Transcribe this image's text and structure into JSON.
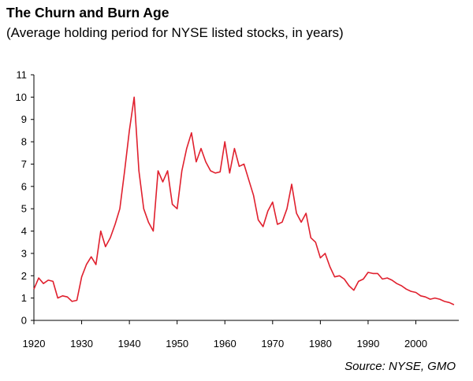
{
  "header": {
    "title": "The Churn and Burn Age",
    "subtitle": "(Average holding period for NYSE listed stocks, in years)"
  },
  "footer": {
    "source": "Source: NYSE, GMO"
  },
  "chart_data": {
    "type": "line",
    "title": "The Churn and Burn Age",
    "subtitle": "(Average holding period for NYSE listed stocks, in years)",
    "xlabel": "",
    "ylabel": "",
    "xlim": [
      1920,
      2009
    ],
    "ylim": [
      0,
      11
    ],
    "x_ticks": [
      1920,
      1930,
      1940,
      1950,
      1960,
      1970,
      1980,
      1990,
      2000
    ],
    "y_ticks": [
      0,
      1,
      2,
      3,
      4,
      5,
      6,
      7,
      8,
      9,
      10,
      11
    ],
    "grid": false,
    "legend": "none",
    "line_color": "#e0202e",
    "series": [
      {
        "x": [
          1920,
          1921,
          1922,
          1923,
          1924,
          1925,
          1926,
          1927,
          1928,
          1929,
          1930,
          1931,
          1932,
          1933,
          1934,
          1935,
          1936,
          1937,
          1938,
          1939,
          1940,
          1941,
          1942,
          1943,
          1944,
          1945,
          1946,
          1947,
          1948,
          1949,
          1950,
          1951,
          1952,
          1953,
          1954,
          1955,
          1956,
          1957,
          1958,
          1959,
          1960,
          1961,
          1962,
          1963,
          1964,
          1965,
          1966,
          1967,
          1968,
          1969,
          1970,
          1971,
          1972,
          1973,
          1974,
          1975,
          1976,
          1977,
          1978,
          1979,
          1980,
          1981,
          1982,
          1983,
          1984,
          1985,
          1986,
          1987,
          1988,
          1989,
          1990,
          1991,
          1992,
          1993,
          1994,
          1995,
          1996,
          1997,
          1998,
          1999,
          2000,
          2001,
          2002,
          2003,
          2004,
          2005,
          2006,
          2007,
          2008
        ],
        "y": [
          1.4,
          1.9,
          1.65,
          1.8,
          1.75,
          1.0,
          1.1,
          1.05,
          0.85,
          0.9,
          1.95,
          2.5,
          2.85,
          2.5,
          4.0,
          3.3,
          3.7,
          4.3,
          5.0,
          6.7,
          8.5,
          10.0,
          6.7,
          5.0,
          4.4,
          4.0,
          6.7,
          6.2,
          6.7,
          5.2,
          5.0,
          6.7,
          7.7,
          8.4,
          7.1,
          7.7,
          7.1,
          6.7,
          6.6,
          6.65,
          8.0,
          6.6,
          7.7,
          6.9,
          7.0,
          6.3,
          5.6,
          4.5,
          4.2,
          4.9,
          5.3,
          4.3,
          4.4,
          5.0,
          6.1,
          4.8,
          4.4,
          4.8,
          3.7,
          3.5,
          2.8,
          3.0,
          2.4,
          1.95,
          2.0,
          1.85,
          1.55,
          1.35,
          1.75,
          1.85,
          2.15,
          2.1,
          2.1,
          1.85,
          1.9,
          1.8,
          1.65,
          1.55,
          1.4,
          1.3,
          1.25,
          1.1,
          1.05,
          0.95,
          1.0,
          0.95,
          0.85,
          0.8,
          0.7
        ]
      }
    ]
  }
}
